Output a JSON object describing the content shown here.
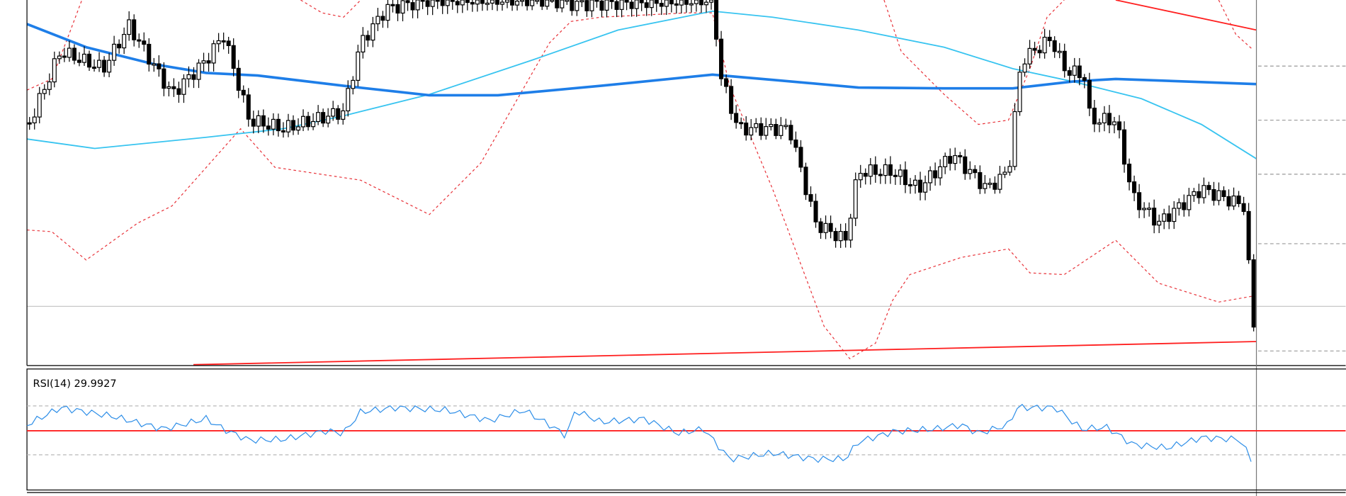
{
  "rsi_panel": {
    "label": "RSI(14) 29.9927"
  }
}
